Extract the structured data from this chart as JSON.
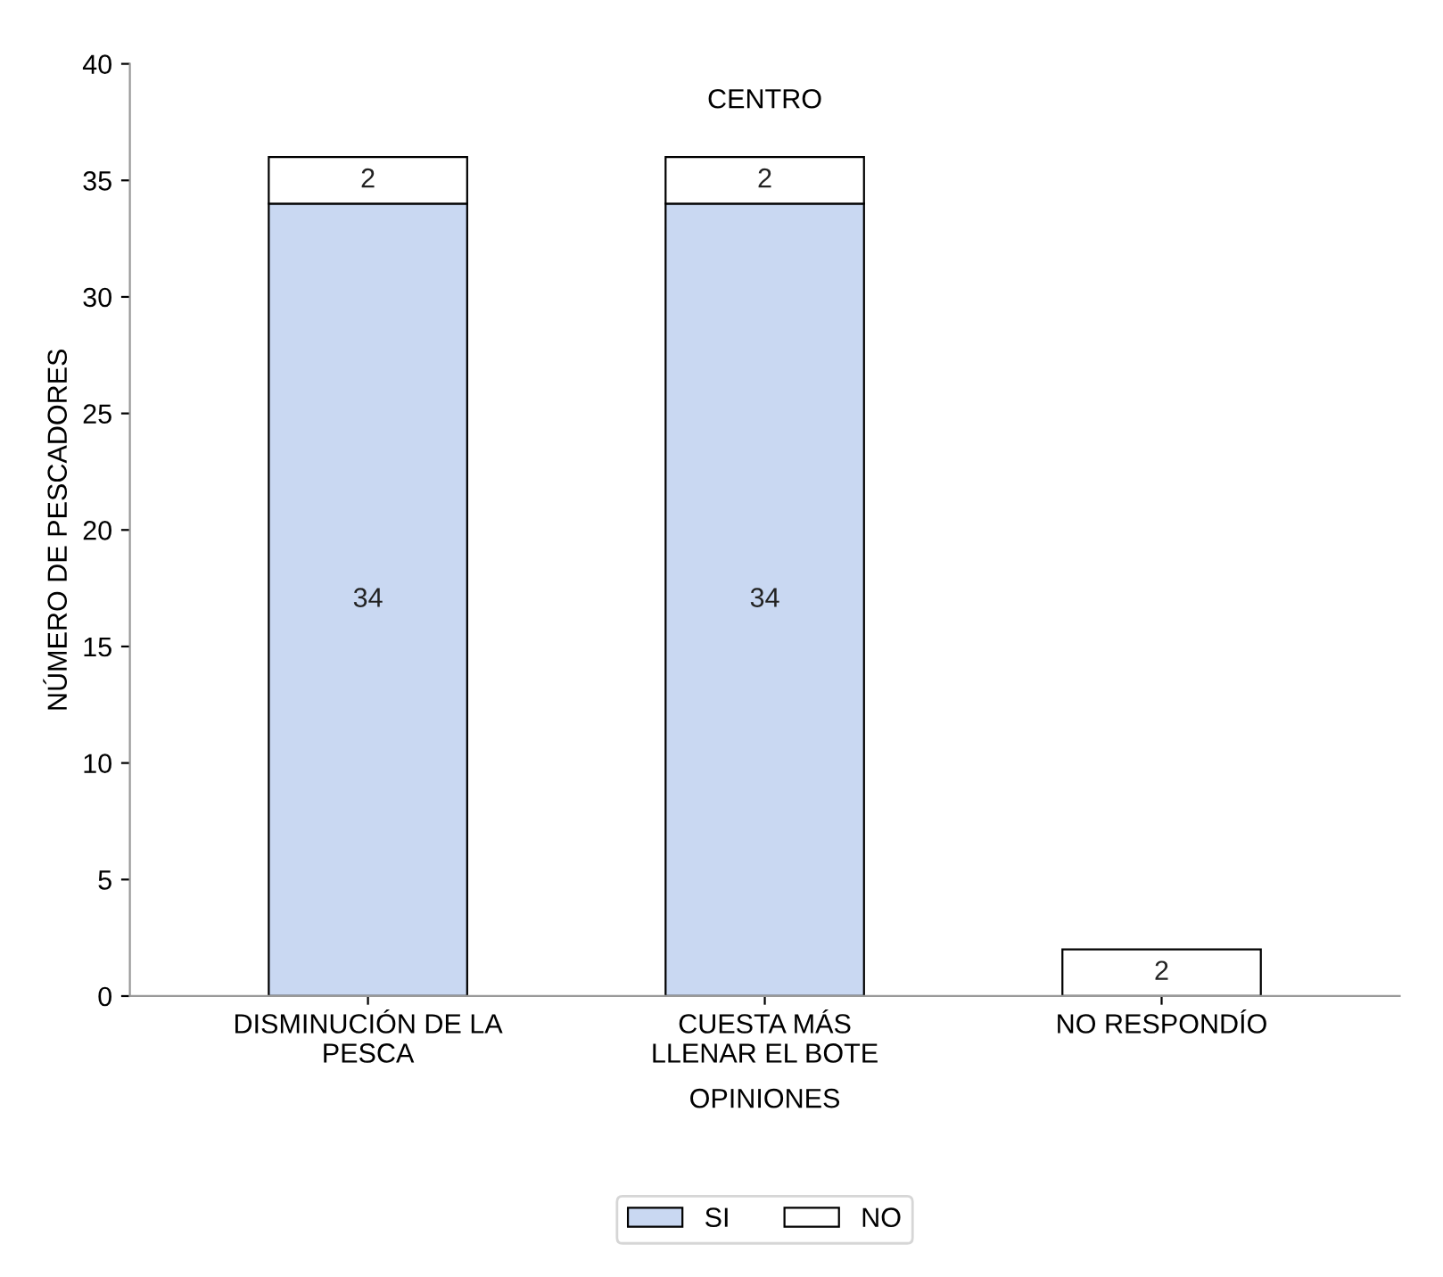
{
  "chart_data": {
    "type": "bar",
    "stacked": true,
    "title": "CENTRO",
    "xlabel": "OPINIONES",
    "ylabel": "NÚMERO DE PESCADORES",
    "categories": [
      "DISMINUCIÓN DE LA\nPESCA",
      "CUESTA MÁS\nLLENAR EL BOTE",
      "NO RESPONDÍO"
    ],
    "series": [
      {
        "name": "SI",
        "color": "#c9d8f2",
        "values": [
          34,
          34,
          null
        ],
        "value_labels": [
          "34",
          "34",
          null
        ]
      },
      {
        "name": "NO",
        "color": "#ffffff",
        "values": [
          2,
          2,
          2
        ],
        "value_labels": [
          "2",
          "2",
          "2"
        ]
      }
    ],
    "ylim": [
      0,
      40
    ],
    "yticks": [
      0,
      5,
      10,
      15,
      20,
      25,
      30,
      35,
      40
    ],
    "grid": false,
    "legend": "bottom"
  }
}
